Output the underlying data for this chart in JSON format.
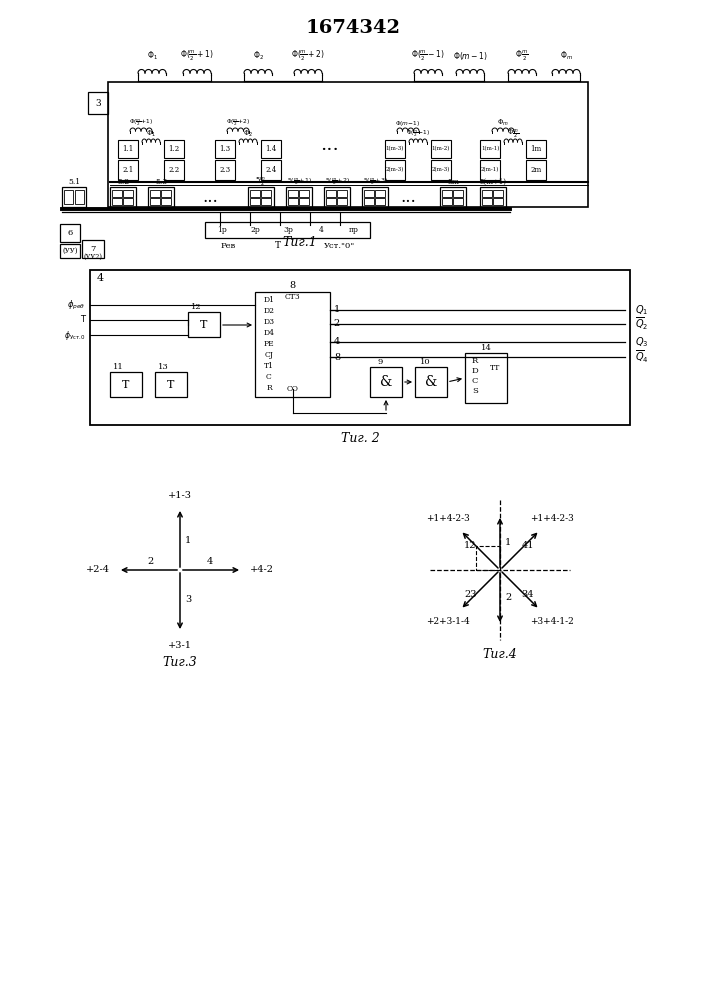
{
  "title": "1674342",
  "fig1_label": "Τиг.1",
  "fig2_label": "Τиг. 2",
  "fig3_label": "Τиг.3",
  "fig4_label": "Τиг.4",
  "bg_color": "#ffffff",
  "line_color": "#000000"
}
